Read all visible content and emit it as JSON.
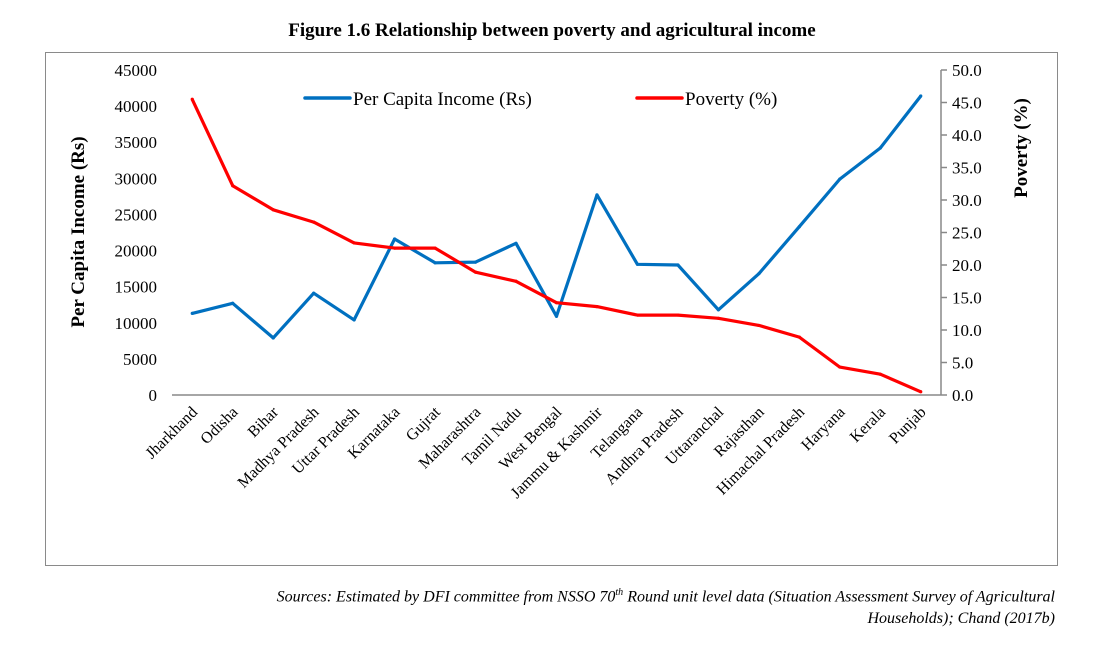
{
  "title": "Figure 1.6 Relationship between poverty and agricultural income",
  "source": {
    "line1_prefix": "Sources: Estimated by DFI committee from NSSO 70",
    "line1_sup": "th",
    "line1_suffix": " Round unit level data (Situation Assessment Survey of Agricultural",
    "line2": "Households); Chand (2017b)"
  },
  "chart_data": {
    "type": "line",
    "title": "Figure 1.6 Relationship between poverty and agricultural income",
    "categories": [
      "Jharkhand",
      "Odisha",
      "Bihar",
      "Madhya Pradesh",
      "Uttar Pradesh",
      "Karnataka",
      "Gujrat",
      "Maharashtra",
      "Tamil Nadu",
      "West Bengal",
      "Jammu & Kashmir",
      "Telangana",
      "Andhra Pradesh",
      "Uttaranchal",
      "Rajasthan",
      "Himachal Pradesh",
      "Haryana",
      "Kerala",
      "Punjab"
    ],
    "series": [
      {
        "name": "Per Capita Income (Rs)",
        "axis": "left",
        "color": "#0070C0",
        "values": [
          11300,
          12700,
          7900,
          14100,
          10400,
          21600,
          18300,
          18400,
          21000,
          10900,
          27700,
          18100,
          18000,
          11800,
          16800,
          23300,
          29900,
          34200,
          41400
        ]
      },
      {
        "name": "Poverty (%)",
        "axis": "right",
        "color": "#FF0000",
        "values": [
          45.5,
          32.2,
          28.5,
          26.6,
          23.4,
          22.6,
          22.6,
          18.9,
          17.5,
          14.2,
          13.6,
          12.3,
          12.3,
          11.8,
          10.7,
          8.9,
          4.3,
          3.2,
          0.5
        ]
      }
    ],
    "ylabel": "Per Capita Income (Rs)",
    "ylabel_right": "Poverty (%)",
    "ylim": [
      0,
      45000
    ],
    "ylim_right": [
      0,
      50
    ],
    "yticks": [
      "0",
      "5000",
      "10000",
      "15000",
      "20000",
      "25000",
      "30000",
      "35000",
      "40000",
      "45000"
    ],
    "yticks_right": [
      "0.0",
      "5.0",
      "10.0",
      "15.0",
      "20.0",
      "25.0",
      "30.0",
      "35.0",
      "40.0",
      "45.0",
      "50.0"
    ],
    "grid": false,
    "legend": "top"
  }
}
